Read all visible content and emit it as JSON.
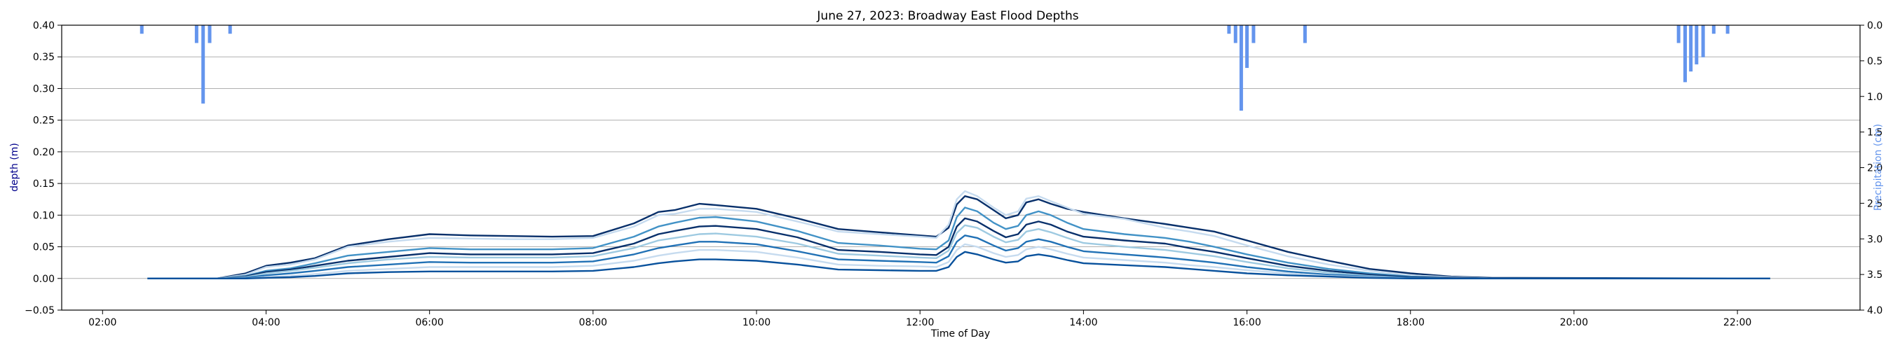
{
  "chart_data": {
    "type": "line",
    "title": "June 27, 2023: Broadway East Flood Depths",
    "xlabel": "Time of Day",
    "ylabel": "depth (m)",
    "y2label": "Precipitation (cm)",
    "xlim": [
      1.5,
      23.5
    ],
    "ylim": [
      -0.05,
      0.4
    ],
    "y2lim": [
      4.0,
      0.0
    ],
    "y2_inverted": true,
    "grid": "horizontal",
    "x_ticks": [
      2,
      4,
      6,
      8,
      10,
      12,
      14,
      16,
      18,
      20,
      22
    ],
    "x_tick_labels": [
      "02:00",
      "04:00",
      "06:00",
      "08:00",
      "10:00",
      "12:00",
      "14:00",
      "16:00",
      "18:00",
      "20:00",
      "22:00"
    ],
    "y_ticks": [
      -0.05,
      0.0,
      0.05,
      0.1,
      0.15,
      0.2,
      0.25,
      0.3,
      0.35,
      0.4
    ],
    "y_tick_labels": [
      "−0.05",
      "0.00",
      "0.05",
      "0.10",
      "0.15",
      "0.20",
      "0.25",
      "0.30",
      "0.35",
      "0.40"
    ],
    "y2_ticks": [
      0.0,
      0.5,
      1.0,
      1.5,
      2.0,
      2.5,
      3.0,
      3.5,
      4.0
    ],
    "y2_tick_labels": [
      "0.0",
      "0.5",
      "1.0",
      "1.5",
      "2.0",
      "2.5",
      "3.0",
      "3.5",
      "4.0"
    ],
    "colors": {
      "ylabel": "#00008b",
      "y2label": "#6495ed",
      "precip_bars": "#6495ed",
      "grid": "#b0b0b0"
    },
    "precipitation": {
      "x": [
        2.48,
        3.15,
        3.23,
        3.31,
        3.56,
        15.78,
        15.86,
        15.93,
        16.0,
        16.08,
        16.71,
        21.28,
        21.36,
        21.43,
        21.5,
        21.58,
        21.71,
        21.88
      ],
      "values": [
        0.12,
        0.25,
        1.1,
        0.25,
        0.12,
        0.12,
        0.25,
        1.2,
        0.6,
        0.25,
        0.25,
        0.25,
        0.8,
        0.65,
        0.55,
        0.45,
        0.12,
        0.12
      ]
    },
    "series": [
      {
        "color": "#08306b",
        "x": [
          2.55,
          3.4,
          3.75,
          4.0,
          4.3,
          4.6,
          5.0,
          5.5,
          6.0,
          6.5,
          7.0,
          7.5,
          8.0,
          8.5,
          8.8,
          9.0,
          9.3,
          9.5,
          10.0,
          10.5,
          11.0,
          11.5,
          12.0,
          12.2,
          12.35,
          12.45,
          12.55,
          12.7,
          12.9,
          13.05,
          13.2,
          13.3,
          13.45,
          13.6,
          13.8,
          14.0,
          14.5,
          15.0,
          15.3,
          15.6,
          16.0,
          16.5,
          17.0,
          17.5,
          18.0,
          18.5,
          19.0,
          22.4
        ],
        "values": [
          0,
          0,
          0.008,
          0.02,
          0.025,
          0.032,
          0.052,
          0.062,
          0.07,
          0.068,
          0.067,
          0.066,
          0.067,
          0.087,
          0.105,
          0.108,
          0.118,
          0.116,
          0.11,
          0.095,
          0.078,
          0.073,
          0.068,
          0.066,
          0.08,
          0.117,
          0.13,
          0.125,
          0.108,
          0.095,
          0.1,
          0.12,
          0.125,
          0.118,
          0.11,
          0.105,
          0.095,
          0.086,
          0.08,
          0.074,
          0.06,
          0.042,
          0.028,
          0.015,
          0.008,
          0.003,
          0.001,
          0
        ]
      },
      {
        "color": "#c6dbef",
        "x": [
          2.55,
          3.4,
          3.75,
          4.0,
          4.3,
          4.6,
          5.0,
          5.5,
          6.0,
          6.5,
          7.0,
          7.5,
          8.0,
          8.5,
          8.8,
          9.0,
          9.3,
          9.5,
          10.0,
          10.5,
          11.0,
          11.5,
          12.0,
          12.2,
          12.35,
          12.45,
          12.55,
          12.7,
          12.9,
          13.05,
          13.2,
          13.3,
          13.45,
          13.6,
          13.8,
          14.0,
          14.5,
          15.0,
          15.3,
          15.6,
          16.0,
          16.5,
          17.0,
          17.5,
          18.0,
          18.5,
          19.0,
          22.4
        ],
        "values": [
          0,
          0,
          0.006,
          0.018,
          0.022,
          0.03,
          0.05,
          0.058,
          0.064,
          0.063,
          0.062,
          0.062,
          0.064,
          0.082,
          0.1,
          0.102,
          0.11,
          0.11,
          0.105,
          0.09,
          0.074,
          0.07,
          0.066,
          0.064,
          0.085,
          0.125,
          0.138,
          0.13,
          0.112,
          0.1,
          0.106,
          0.126,
          0.13,
          0.122,
          0.112,
          0.102,
          0.094,
          0.08,
          0.074,
          0.067,
          0.052,
          0.035,
          0.022,
          0.012,
          0.005,
          0.002,
          0,
          0
        ]
      },
      {
        "color": "#4292c6",
        "x": [
          2.55,
          3.4,
          3.75,
          4.0,
          4.3,
          4.6,
          5.0,
          5.5,
          6.0,
          6.5,
          7.0,
          7.5,
          8.0,
          8.5,
          8.8,
          9.0,
          9.3,
          9.5,
          10.0,
          10.5,
          11.0,
          11.5,
          12.0,
          12.2,
          12.35,
          12.45,
          12.55,
          12.7,
          12.9,
          13.05,
          13.2,
          13.3,
          13.45,
          13.6,
          13.8,
          14.0,
          14.5,
          15.0,
          15.3,
          15.6,
          16.0,
          16.5,
          17.0,
          17.5,
          18.0,
          18.5,
          19.0,
          22.4
        ],
        "values": [
          0,
          0,
          0.004,
          0.012,
          0.016,
          0.024,
          0.036,
          0.042,
          0.048,
          0.046,
          0.046,
          0.046,
          0.048,
          0.066,
          0.082,
          0.088,
          0.096,
          0.097,
          0.09,
          0.075,
          0.056,
          0.052,
          0.047,
          0.046,
          0.06,
          0.097,
          0.112,
          0.106,
          0.088,
          0.078,
          0.083,
          0.1,
          0.106,
          0.1,
          0.088,
          0.078,
          0.07,
          0.064,
          0.058,
          0.05,
          0.038,
          0.025,
          0.015,
          0.008,
          0.003,
          0.001,
          0,
          0
        ]
      },
      {
        "color": "#08306b",
        "x": [
          2.55,
          3.4,
          3.75,
          4.0,
          4.3,
          4.6,
          5.0,
          5.5,
          6.0,
          6.5,
          7.0,
          7.5,
          8.0,
          8.5,
          8.8,
          9.0,
          9.3,
          9.5,
          10.0,
          10.5,
          11.0,
          11.5,
          12.0,
          12.2,
          12.35,
          12.45,
          12.55,
          12.7,
          12.9,
          13.05,
          13.2,
          13.3,
          13.45,
          13.6,
          13.8,
          14.0,
          14.5,
          15.0,
          15.3,
          15.6,
          16.0,
          16.5,
          17.0,
          17.5,
          18.0,
          18.5,
          19.0,
          22.4
        ],
        "values": [
          0,
          0,
          0.003,
          0.01,
          0.014,
          0.02,
          0.028,
          0.034,
          0.04,
          0.038,
          0.038,
          0.038,
          0.04,
          0.055,
          0.07,
          0.075,
          0.082,
          0.083,
          0.078,
          0.065,
          0.045,
          0.042,
          0.038,
          0.037,
          0.05,
          0.082,
          0.095,
          0.09,
          0.075,
          0.065,
          0.07,
          0.085,
          0.09,
          0.085,
          0.074,
          0.066,
          0.06,
          0.055,
          0.048,
          0.042,
          0.032,
          0.02,
          0.012,
          0.006,
          0.002,
          0.001,
          0,
          0
        ]
      },
      {
        "color": "#9ecae1",
        "x": [
          2.55,
          3.4,
          3.75,
          4.0,
          4.3,
          4.6,
          5.0,
          5.5,
          6.0,
          6.5,
          7.0,
          7.5,
          8.0,
          8.5,
          8.8,
          9.0,
          9.3,
          9.5,
          10.0,
          10.5,
          11.0,
          11.5,
          12.0,
          12.2,
          12.35,
          12.45,
          12.55,
          12.7,
          12.9,
          13.05,
          13.2,
          13.3,
          13.45,
          13.6,
          13.8,
          14.0,
          14.5,
          15.0,
          15.3,
          15.6,
          16.0,
          16.5,
          17.0,
          17.5,
          18.0,
          18.5,
          19.0,
          22.4
        ],
        "values": [
          0,
          0,
          0.002,
          0.008,
          0.012,
          0.017,
          0.024,
          0.03,
          0.034,
          0.033,
          0.033,
          0.033,
          0.035,
          0.048,
          0.06,
          0.064,
          0.07,
          0.071,
          0.066,
          0.055,
          0.039,
          0.036,
          0.033,
          0.032,
          0.044,
          0.072,
          0.084,
          0.08,
          0.066,
          0.057,
          0.061,
          0.074,
          0.078,
          0.073,
          0.064,
          0.056,
          0.05,
          0.045,
          0.04,
          0.035,
          0.026,
          0.016,
          0.009,
          0.004,
          0.001,
          0,
          0,
          0
        ]
      },
      {
        "color": "#2171b5",
        "x": [
          2.55,
          3.4,
          3.75,
          4.0,
          4.3,
          4.6,
          5.0,
          5.5,
          6.0,
          6.5,
          7.0,
          7.5,
          8.0,
          8.5,
          8.8,
          9.0,
          9.3,
          9.5,
          10.0,
          10.5,
          11.0,
          11.5,
          12.0,
          12.2,
          12.35,
          12.45,
          12.55,
          12.7,
          12.9,
          13.05,
          13.2,
          13.3,
          13.45,
          13.6,
          13.8,
          14.0,
          14.5,
          15.0,
          15.3,
          15.6,
          16.0,
          16.5,
          17.0,
          17.5,
          18.0,
          18.5,
          19.0,
          22.4
        ],
        "values": [
          0,
          0,
          0.001,
          0.005,
          0.008,
          0.012,
          0.018,
          0.022,
          0.026,
          0.025,
          0.025,
          0.025,
          0.027,
          0.038,
          0.048,
          0.052,
          0.058,
          0.058,
          0.054,
          0.043,
          0.03,
          0.028,
          0.026,
          0.025,
          0.035,
          0.058,
          0.068,
          0.064,
          0.052,
          0.044,
          0.048,
          0.058,
          0.062,
          0.058,
          0.05,
          0.043,
          0.038,
          0.033,
          0.029,
          0.025,
          0.018,
          0.011,
          0.006,
          0.003,
          0.001,
          0,
          0,
          0
        ]
      },
      {
        "color": "#c6dbef",
        "x": [
          2.55,
          3.4,
          3.75,
          4.0,
          4.3,
          4.6,
          5.0,
          5.5,
          6.0,
          6.5,
          7.0,
          7.5,
          8.0,
          8.5,
          8.8,
          9.0,
          9.3,
          9.5,
          10.0,
          10.5,
          11.0,
          11.5,
          12.0,
          12.2,
          12.35,
          12.45,
          12.55,
          12.7,
          12.9,
          13.05,
          13.2,
          13.3,
          13.45,
          13.6,
          13.8,
          14.0,
          14.5,
          15.0,
          15.3,
          15.6,
          16.0,
          16.5,
          17.0,
          17.5,
          18.0,
          18.5,
          19.0,
          22.4
        ],
        "values": [
          0,
          0,
          0,
          0.002,
          0.004,
          0.007,
          0.012,
          0.015,
          0.018,
          0.018,
          0.018,
          0.018,
          0.02,
          0.028,
          0.036,
          0.04,
          0.045,
          0.045,
          0.042,
          0.033,
          0.022,
          0.02,
          0.019,
          0.018,
          0.026,
          0.045,
          0.054,
          0.05,
          0.04,
          0.034,
          0.037,
          0.046,
          0.05,
          0.046,
          0.039,
          0.033,
          0.029,
          0.025,
          0.021,
          0.018,
          0.013,
          0.008,
          0.004,
          0.002,
          0,
          0,
          0,
          0
        ]
      },
      {
        "color": "#08519c",
        "x": [
          2.55,
          3.4,
          3.75,
          4.0,
          4.3,
          4.6,
          5.0,
          5.5,
          6.0,
          6.5,
          7.0,
          7.5,
          8.0,
          8.5,
          8.8,
          9.0,
          9.3,
          9.5,
          10.0,
          10.5,
          11.0,
          11.5,
          12.0,
          12.2,
          12.35,
          12.45,
          12.55,
          12.7,
          12.9,
          13.05,
          13.2,
          13.3,
          13.45,
          13.6,
          13.8,
          14.0,
          14.5,
          15.0,
          15.3,
          15.6,
          16.0,
          16.5,
          17.0,
          17.5,
          18.0,
          18.5,
          19.0,
          22.4
        ],
        "values": [
          0,
          0,
          0,
          0.001,
          0.002,
          0.004,
          0.008,
          0.01,
          0.011,
          0.011,
          0.011,
          0.011,
          0.012,
          0.018,
          0.024,
          0.027,
          0.03,
          0.03,
          0.028,
          0.022,
          0.014,
          0.013,
          0.012,
          0.012,
          0.018,
          0.034,
          0.042,
          0.038,
          0.03,
          0.025,
          0.027,
          0.035,
          0.038,
          0.035,
          0.029,
          0.024,
          0.021,
          0.018,
          0.015,
          0.012,
          0.008,
          0.005,
          0.003,
          0.001,
          0,
          0,
          0,
          0
        ]
      }
    ]
  }
}
